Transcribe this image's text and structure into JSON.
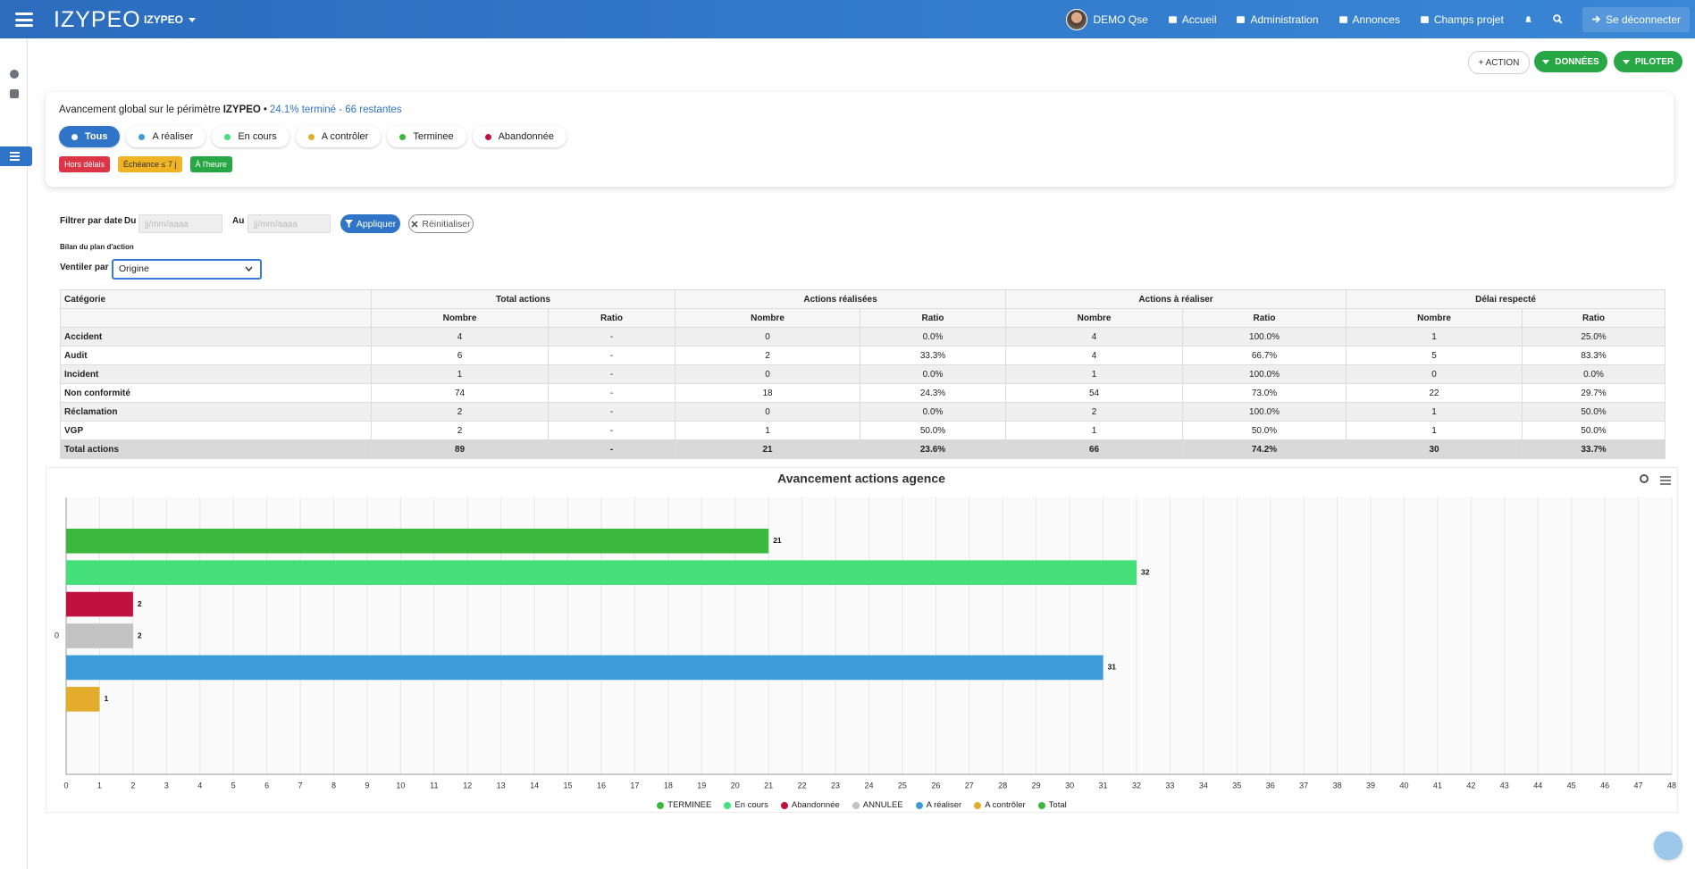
{
  "navbar": {
    "brand": "IZYPEO",
    "project": "IZYPEO",
    "user": "DEMO Qse",
    "links": [
      "Accueil",
      "Administration",
      "Annonces",
      "Champs projet"
    ],
    "logout": "Se déconnecter"
  },
  "toolbar": [
    "+ ACTION",
    "DONNÉES",
    "PILOTER"
  ],
  "summary": {
    "prefix": "Avancement global sur le périmètre",
    "scope": "IZYPEO",
    "separator": "•",
    "progress": "24.1% terminé - 66 restantes",
    "statuses": [
      {
        "label": "Tous",
        "color": "#2f74c6"
      },
      {
        "label": "A réaliser",
        "color": "#3e9bd9"
      },
      {
        "label": "En cours",
        "color": "#45e07a"
      },
      {
        "label": "A contrôler",
        "color": "#e2ad2a"
      },
      {
        "label": "Terminee",
        "color": "#3bb83d"
      },
      {
        "label": "Abandonnée",
        "color": "#c1113f"
      }
    ],
    "badges": [
      {
        "label": "Hors délais",
        "color": "#dc3545"
      },
      {
        "label": "Échéance ≤ 7 j",
        "color": "#f0b323"
      },
      {
        "label": "À l'heure",
        "color": "#28a745"
      }
    ]
  },
  "filters": {
    "label": "Filtrer par date",
    "from": "Du",
    "to": "Au",
    "placeholder": "jj/mm/aaaa",
    "apply": "Appliquer",
    "reset": "Réinitialiser",
    "section": "Bilan du plan d'action",
    "breakdown_label": "Ventiler par",
    "breakdown_value": "Origine"
  },
  "table": {
    "groups": [
      "Catégorie",
      "Total actions",
      "Actions réalisées",
      "Actions à réaliser",
      "Délai respecté"
    ],
    "subheaders": [
      "Nombre",
      "Ratio",
      "Nombre",
      "Ratio",
      "Nombre",
      "Ratio",
      "Nombre",
      "Ratio"
    ],
    "rows": [
      [
        "Accident",
        "4",
        "-",
        "0",
        "0.0%",
        "4",
        "100.0%",
        "1",
        "25.0%"
      ],
      [
        "Audit",
        "6",
        "-",
        "2",
        "33.3%",
        "4",
        "66.7%",
        "5",
        "83.3%"
      ],
      [
        "Incident",
        "1",
        "-",
        "0",
        "0.0%",
        "1",
        "100.0%",
        "0",
        "0.0%"
      ],
      [
        "Non conformité",
        "74",
        "-",
        "18",
        "24.3%",
        "54",
        "73.0%",
        "22",
        "29.7%"
      ],
      [
        "Réclamation",
        "2",
        "-",
        "0",
        "0.0%",
        "2",
        "100.0%",
        "1",
        "50.0%"
      ],
      [
        "VGP",
        "2",
        "-",
        "1",
        "50.0%",
        "1",
        "50.0%",
        "1",
        "50.0%"
      ],
      [
        "Total actions",
        "89",
        "-",
        "21",
        "23.6%",
        "66",
        "74.2%",
        "30",
        "33.7%"
      ]
    ]
  },
  "chart_data": {
    "type": "bar",
    "orientation": "horizontal",
    "title": "Avancement actions agence",
    "categories": [
      "0"
    ],
    "series": [
      {
        "name": "TERMINEE",
        "color": "#3bb83d",
        "values": [
          21
        ]
      },
      {
        "name": "En cours",
        "color": "#45e07a",
        "values": [
          32
        ]
      },
      {
        "name": "Abandonnée",
        "color": "#c1113f",
        "values": [
          2
        ]
      },
      {
        "name": "ANNULEE",
        "color": "#c2c2c2",
        "values": [
          2
        ]
      },
      {
        "name": "A réaliser",
        "color": "#3e9bd9",
        "values": [
          31
        ]
      },
      {
        "name": "A contrôler",
        "color": "#e2ad2a",
        "values": [
          1
        ]
      },
      {
        "name": "Total",
        "color": "#3bb83d",
        "values": [
          null
        ]
      }
    ],
    "xlim": [
      0,
      48
    ],
    "xticks": [
      0,
      1,
      2,
      3,
      4,
      5,
      6,
      7,
      8,
      9,
      10,
      11,
      12,
      13,
      14,
      15,
      16,
      17,
      18,
      19,
      20,
      21,
      22,
      23,
      24,
      25,
      26,
      27,
      28,
      29,
      30,
      31,
      32,
      33,
      34,
      35,
      36,
      37,
      38,
      39,
      40,
      41,
      42,
      43,
      44,
      45,
      46,
      47,
      48
    ],
    "grid": true,
    "legend": "bottom"
  }
}
